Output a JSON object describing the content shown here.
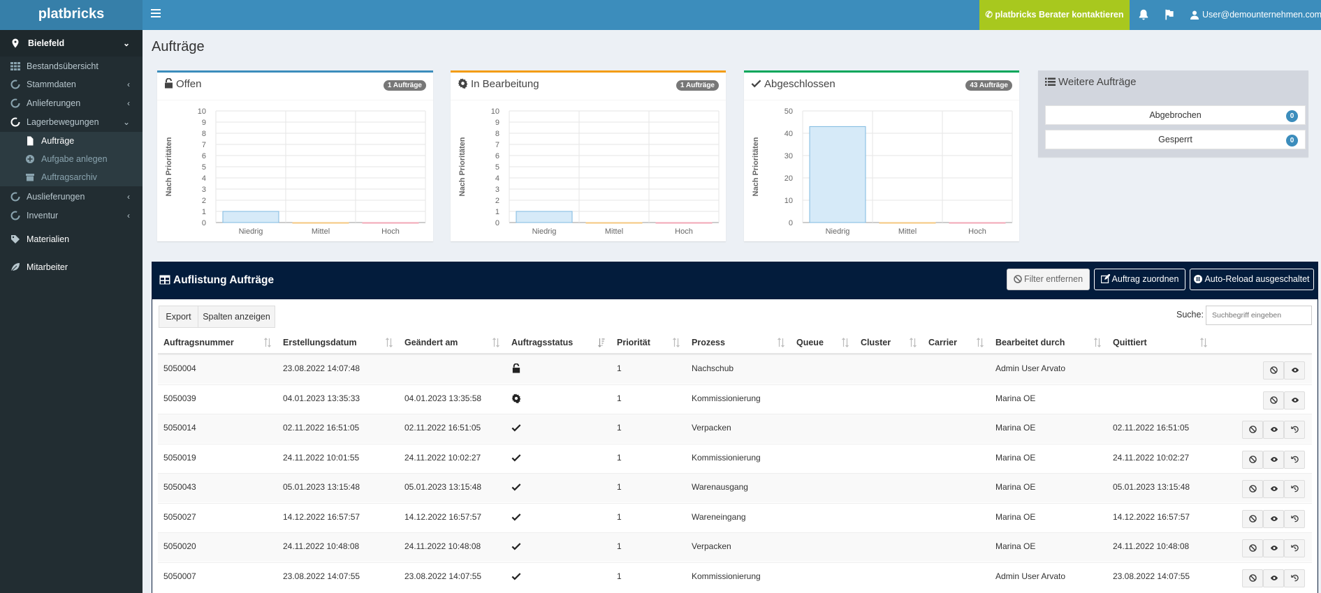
{
  "app": {
    "logo": "platbricks",
    "contact_label": "platbricks Berater kontaktieren",
    "user_email": "User@demounternehmen.com"
  },
  "sidebar": {
    "location": "Bielefeld",
    "items": [
      {
        "label": "Bestandsübersicht"
      },
      {
        "label": "Stammdaten"
      },
      {
        "label": "Anlieferungen"
      },
      {
        "label": "Lagerbewegungen"
      },
      {
        "label": "Aufträge"
      },
      {
        "label": "Aufgabe anlegen"
      },
      {
        "label": "Auftragsarchiv"
      },
      {
        "label": "Auslieferungen"
      },
      {
        "label": "Inventur"
      },
      {
        "label": "Materialien"
      },
      {
        "label": "Mitarbeiter"
      }
    ]
  },
  "page": {
    "title": "Aufträge"
  },
  "colors": {
    "open": "#3c8dbc",
    "in_progress": "#f39c12",
    "closed": "#00a65a",
    "bar_fill": "#d6eaf8",
    "bar_stroke": "#7fb9e0"
  },
  "boxes": [
    {
      "title": "Offen",
      "badge": "1 Aufträge",
      "icon": "unlock-icon"
    },
    {
      "title": "In Bearbeitung",
      "badge": "1 Aufträge",
      "icon": "cog-icon"
    },
    {
      "title": "Abgeschlossen",
      "badge": "43 Aufträge",
      "icon": "check-icon"
    }
  ],
  "chart_data": [
    {
      "type": "bar",
      "title": "Offen",
      "categories": [
        "Niedrig",
        "Mittel",
        "Hoch"
      ],
      "values": [
        1,
        0,
        0
      ],
      "ylabel": "Nach Prioritäten",
      "ylim": [
        0,
        10
      ],
      "yticks": [
        0,
        1,
        2,
        3,
        4,
        5,
        6,
        7,
        8,
        9,
        10
      ]
    },
    {
      "type": "bar",
      "title": "In Bearbeitung",
      "categories": [
        "Niedrig",
        "Mittel",
        "Hoch"
      ],
      "values": [
        1,
        0,
        0
      ],
      "ylabel": "Nach Prioritäten",
      "ylim": [
        0,
        10
      ],
      "yticks": [
        0,
        1,
        2,
        3,
        4,
        5,
        6,
        7,
        8,
        9,
        10
      ]
    },
    {
      "type": "bar",
      "title": "Abgeschlossen",
      "categories": [
        "Niedrig",
        "Mittel",
        "Hoch"
      ],
      "values": [
        43,
        0,
        0
      ],
      "ylabel": "Nach Prioritäten",
      "ylim": [
        0,
        50
      ],
      "yticks": [
        0,
        10,
        20,
        30,
        40,
        50
      ]
    }
  ],
  "further": {
    "title": "Weitere Aufträge",
    "items": [
      {
        "label": "Abgebrochen",
        "count": "0"
      },
      {
        "label": "Gesperrt",
        "count": "0"
      }
    ]
  },
  "table": {
    "title": "Auflistung Aufträge",
    "buttons": {
      "remove_filter": "Filter entfernen",
      "assign": "Auftrag zuordnen",
      "autoreload": "Auto-Reload ausgeschaltet",
      "export": "Export",
      "columns": "Spalten anzeigen"
    },
    "search": {
      "label": "Suche:",
      "placeholder": "Suchbegriff eingeben"
    },
    "headers": [
      "Auftragsnummer",
      "Erstellungsdatum",
      "Geändert am",
      "Auftragsstatus",
      "Priorität",
      "Prozess",
      "Queue",
      "Cluster",
      "Carrier",
      "Bearbeitet durch",
      "Quittiert"
    ],
    "rows": [
      {
        "nr": "5050004",
        "created": "23.08.2022 14:07:48",
        "changed": "",
        "status": "open",
        "prio": "1",
        "process": "Nachschub",
        "queue": "",
        "cluster": "",
        "carrier": "",
        "by": "Admin User Arvato",
        "ack": ""
      },
      {
        "nr": "5050039",
        "created": "04.01.2023 13:35:33",
        "changed": "04.01.2023 13:35:58",
        "status": "progress",
        "prio": "1",
        "process": "Kommissionierung",
        "queue": "",
        "cluster": "",
        "carrier": "",
        "by": "Marina OE",
        "ack": ""
      },
      {
        "nr": "5050014",
        "created": "02.11.2022 16:51:05",
        "changed": "02.11.2022 16:51:05",
        "status": "done",
        "prio": "1",
        "process": "Verpacken",
        "queue": "",
        "cluster": "",
        "carrier": "",
        "by": "Marina OE",
        "ack": "02.11.2022 16:51:05"
      },
      {
        "nr": "5050019",
        "created": "24.11.2022 10:01:55",
        "changed": "24.11.2022 10:02:27",
        "status": "done",
        "prio": "1",
        "process": "Kommissionierung",
        "queue": "",
        "cluster": "",
        "carrier": "",
        "by": "Marina OE",
        "ack": "24.11.2022 10:02:27"
      },
      {
        "nr": "5050043",
        "created": "05.01.2023 13:15:48",
        "changed": "05.01.2023 13:15:48",
        "status": "done",
        "prio": "1",
        "process": "Warenausgang",
        "queue": "",
        "cluster": "",
        "carrier": "",
        "by": "Marina OE",
        "ack": "05.01.2023 13:15:48"
      },
      {
        "nr": "5050027",
        "created": "14.12.2022 16:57:57",
        "changed": "14.12.2022 16:57:57",
        "status": "done",
        "prio": "1",
        "process": "Wareneingang",
        "queue": "",
        "cluster": "",
        "carrier": "",
        "by": "Marina OE",
        "ack": "14.12.2022 16:57:57"
      },
      {
        "nr": "5050020",
        "created": "24.11.2022 10:48:08",
        "changed": "24.11.2022 10:48:08",
        "status": "done",
        "prio": "1",
        "process": "Verpacken",
        "queue": "",
        "cluster": "",
        "carrier": "",
        "by": "Marina OE",
        "ack": "24.11.2022 10:48:08"
      },
      {
        "nr": "5050007",
        "created": "23.08.2022 14:07:55",
        "changed": "23.08.2022 14:07:55",
        "status": "done",
        "prio": "1",
        "process": "Kommissionierung",
        "queue": "",
        "cluster": "",
        "carrier": "",
        "by": "Admin User Arvato",
        "ack": "23.08.2022 14:07:55"
      }
    ]
  }
}
